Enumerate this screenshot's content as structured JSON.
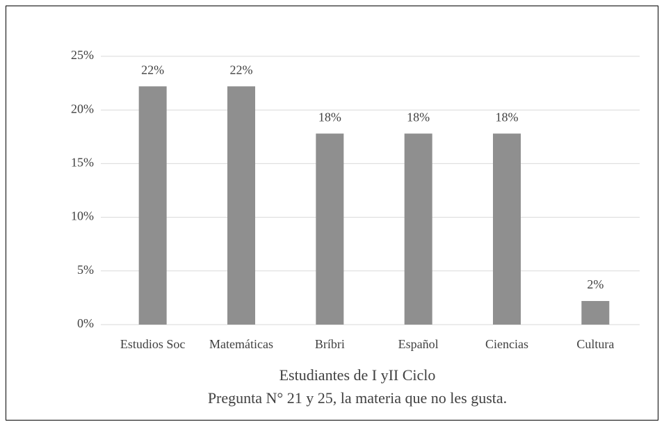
{
  "chart_data": {
    "type": "bar",
    "categories": [
      "Estudios Soc",
      "Matemáticas",
      "Bríbri",
      "Español",
      "Ciencias",
      "Cultura"
    ],
    "values": [
      22.2,
      22.2,
      17.8,
      17.8,
      17.8,
      2.2
    ],
    "value_labels": [
      "22%",
      "22%",
      "18%",
      "18%",
      "18%",
      "2%"
    ],
    "color": "#8f8f8f",
    "ylim": [
      0,
      25
    ],
    "yticks": [
      {
        "value": 0,
        "label": "0%"
      },
      {
        "value": 5,
        "label": "5%"
      },
      {
        "value": 10,
        "label": "10%"
      },
      {
        "value": 15,
        "label": "15%"
      },
      {
        "value": 20,
        "label": "20%"
      },
      {
        "value": 25,
        "label": "25%"
      }
    ],
    "grid": true,
    "xlabel": "Estudiantes de I yII Ciclo",
    "caption": "Pregunta N° 21 y 25, la materia que no les gusta."
  }
}
